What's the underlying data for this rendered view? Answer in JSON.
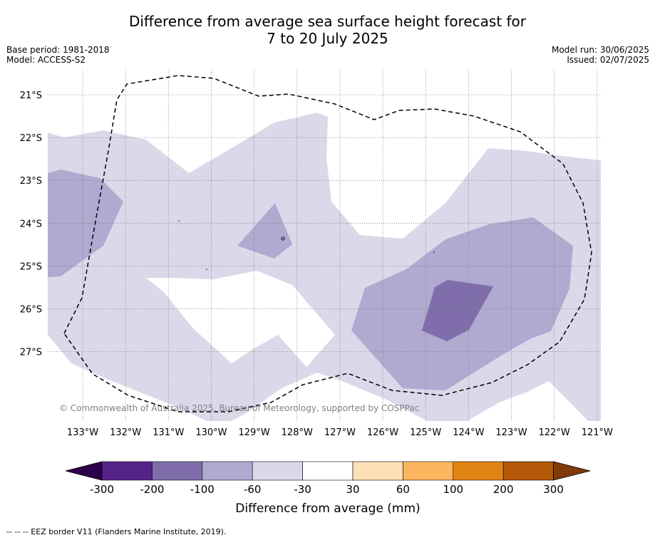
{
  "title_line1": "Difference from average sea surface height forecast for",
  "title_line2": "7 to 20 July 2025",
  "base_period": "Base period: 1981-2018",
  "model": "Model: ACCESS-S2",
  "model_run": "Model run: 30/06/2025",
  "issued": "Issued: 02/07/2025",
  "copyright": "© Commonwealth of Australia 2025, Bureau of Meteorology, supported by COSPPac",
  "footer": "-- -- -- EEZ border V11 (Flanders Marine Institute, 2019).",
  "lat_labels": [
    "21°S",
    "22°S",
    "23°S",
    "24°S",
    "25°S",
    "26°S",
    "27°S"
  ],
  "lon_labels": [
    "133°W",
    "132°W",
    "131°W",
    "130°W",
    "129°W",
    "128°W",
    "127°W",
    "126°W",
    "125°W",
    "124°W",
    "123°W",
    "122°W",
    "121°W"
  ],
  "colorbar": {
    "title": "Difference from average (mm)",
    "tick_labels": [
      "-300",
      "-200",
      "-100",
      "-60",
      "-30",
      "30",
      "60",
      "100",
      "200",
      "300"
    ],
    "colors": [
      "#55228a",
      "#7f6eab",
      "#b0a9d0",
      "#d9d9ea",
      "#ffffff",
      "#fee0b7",
      "#fcb660",
      "#e28414",
      "#b35806"
    ],
    "extend_low_color": "#2d004b",
    "extend_high_color": "#7f3b08"
  },
  "map_colors": {
    "band_-60_-30": "#d9d9ea",
    "band_-100_-60": "#b0a9d0",
    "band_-200_-100": "#7f6eab"
  }
}
